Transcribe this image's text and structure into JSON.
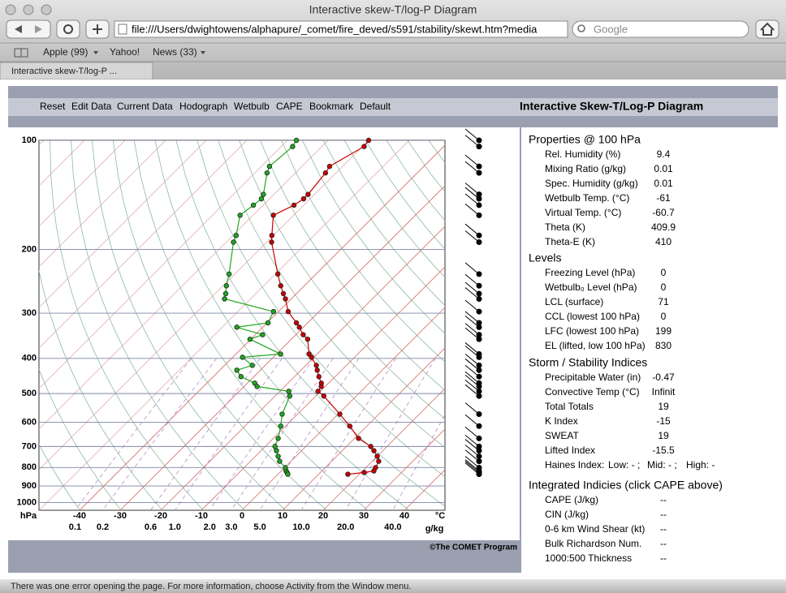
{
  "browser": {
    "window_title": "Interactive skew-T/log-P Diagram",
    "url": "file:///Users/dwightowens/alphapure/_comet/fire_deved/s591/stability/skewt.htm?media",
    "search_placeholder": "Google",
    "bookmarks": [
      "Apple (99)",
      "Yahoo!",
      "News (33)"
    ],
    "tab": "Interactive skew-T/log-P ...",
    "status": "There was one error opening the page. For more information, choose Activity from the Window menu."
  },
  "app": {
    "menu": [
      "Reset",
      "Edit Data",
      "Current Data",
      "Hodograph",
      "Wetbulb",
      "CAPE",
      "Bookmark",
      "Default"
    ],
    "title": "Interactive Skew-T/Log-P Diagram",
    "credit": "©The COMET Program"
  },
  "panel": {
    "sections": [
      {
        "title": "Properties @  100 hPa",
        "rows": [
          [
            "Rel. Humidity (%)",
            "9.4"
          ],
          [
            "Mixing Ratio (g/kg)",
            "0.01"
          ],
          [
            "Spec. Humidity (g/kg)",
            "0.01"
          ],
          [
            "Wetbulb Temp. (°C)",
            "-61"
          ],
          [
            "Virtual Temp. (°C)",
            "-60.7"
          ],
          [
            "Theta (K)",
            "409.9"
          ],
          [
            "Theta-E (K)",
            "410"
          ]
        ]
      },
      {
        "title": "Levels",
        "rows": [
          [
            "Freezing Level (hPa)",
            "0"
          ],
          [
            "Wetbulb₀ Level (hPa)",
            "0"
          ],
          [
            "LCL (surface)",
            "71"
          ],
          [
            "CCL (lowest 100 hPa)",
            "0"
          ],
          [
            "LFC (lowest 100 hPa)",
            "199"
          ],
          [
            "EL (lifted, low 100 hPa)",
            "830"
          ]
        ]
      },
      {
        "title": "Storm / Stability Indices",
        "rows": [
          [
            "Precipitable Water (in)",
            "-0.47"
          ],
          [
            "Convective Temp (°C)",
            "Infinit"
          ],
          [
            "Total Totals",
            "19"
          ],
          [
            "K Index",
            "-15"
          ],
          [
            "SWEAT",
            "19"
          ],
          [
            "Lifted Index",
            "-15.5"
          ],
          [
            "Haines Index:",
            "Low: - ;",
            "Mid: - ;",
            "High: -"
          ]
        ]
      },
      {
        "title": "Integrated Indicies (click CAPE above)",
        "rows": [
          [
            "CAPE (J/kg)",
            "--"
          ],
          [
            "CIN (J/kg)",
            "--"
          ],
          [
            "0-6 km Wind Shear (kt)",
            "--"
          ],
          [
            "Bulk Richardson Num.",
            "--"
          ],
          [
            "1000:500 Thickness",
            "--"
          ]
        ]
      }
    ]
  },
  "chart_data": {
    "type": "skewt",
    "log_y": true,
    "pressure": [
      100,
      104,
      118,
      123,
      141,
      145,
      151,
      161,
      183,
      191,
      234,
      252,
      265,
      274,
      297,
      319,
      328,
      344,
      354,
      389,
      397,
      418,
      431,
      449,
      468,
      478,
      493,
      508,
      570,
      615,
      665,
      700,
      719,
      745,
      769,
      801,
      818,
      826,
      835
    ],
    "series": [
      {
        "color": "#cc0000",
        "values": [
          -60,
          -59.6,
          -63.2,
          -62.6,
          -61.6,
          -61.6,
          -62.4,
          -65,
          -60.4,
          -58.8,
          -49.4,
          -45.8,
          -43.2,
          -41.4,
          -37.6,
          -32.8,
          -31,
          -28.2,
          -26,
          -22,
          -20.6,
          -17.4,
          -16,
          -14,
          -11.8,
          -11,
          -10.6,
          -8,
          0.4,
          5.8,
          11,
          16,
          17.8,
          20,
          21.6,
          22.4,
          22.8,
          20.8,
          17.2
        ]
      },
      {
        "color": "#1fa81f",
        "values": [
          -77.8,
          -77.2,
          -78,
          -77,
          -72.6,
          -72,
          -72.4,
          -73.2,
          -69.2,
          -68.2,
          -61.4,
          -59.2,
          -57.4,
          -56.4,
          -41.2,
          -39.8,
          -46.4,
          -38.2,
          -40.2,
          -29,
          -37.6,
          -33.2,
          -35.8,
          -33.2,
          -28.2,
          -26.8,
          -17.8,
          -16.4,
          -13.8,
          -11.2,
          -8.8,
          -7.6,
          -6.2,
          -4.4,
          -2.8,
          0.2,
          1.2,
          1.8,
          2.4
        ]
      }
    ],
    "ylim": [
      100,
      1050
    ],
    "yticks": [
      100,
      200,
      300,
      400,
      500,
      600,
      700,
      800,
      900,
      1000
    ],
    "xlim": [
      -50,
      50
    ],
    "xticks": [
      -40,
      -30,
      -20,
      -10,
      0,
      10,
      20,
      30,
      40
    ],
    "x_unit": "°C",
    "y_unit": "hPa",
    "mixing_ratio_labels": [
      "0.1",
      "0.2",
      "0.6",
      "1.0",
      "2.0",
      "3.0",
      "5.0",
      "10.0",
      "20.0",
      "40.0"
    ],
    "mixing_ratio_unit": "g/kg"
  }
}
